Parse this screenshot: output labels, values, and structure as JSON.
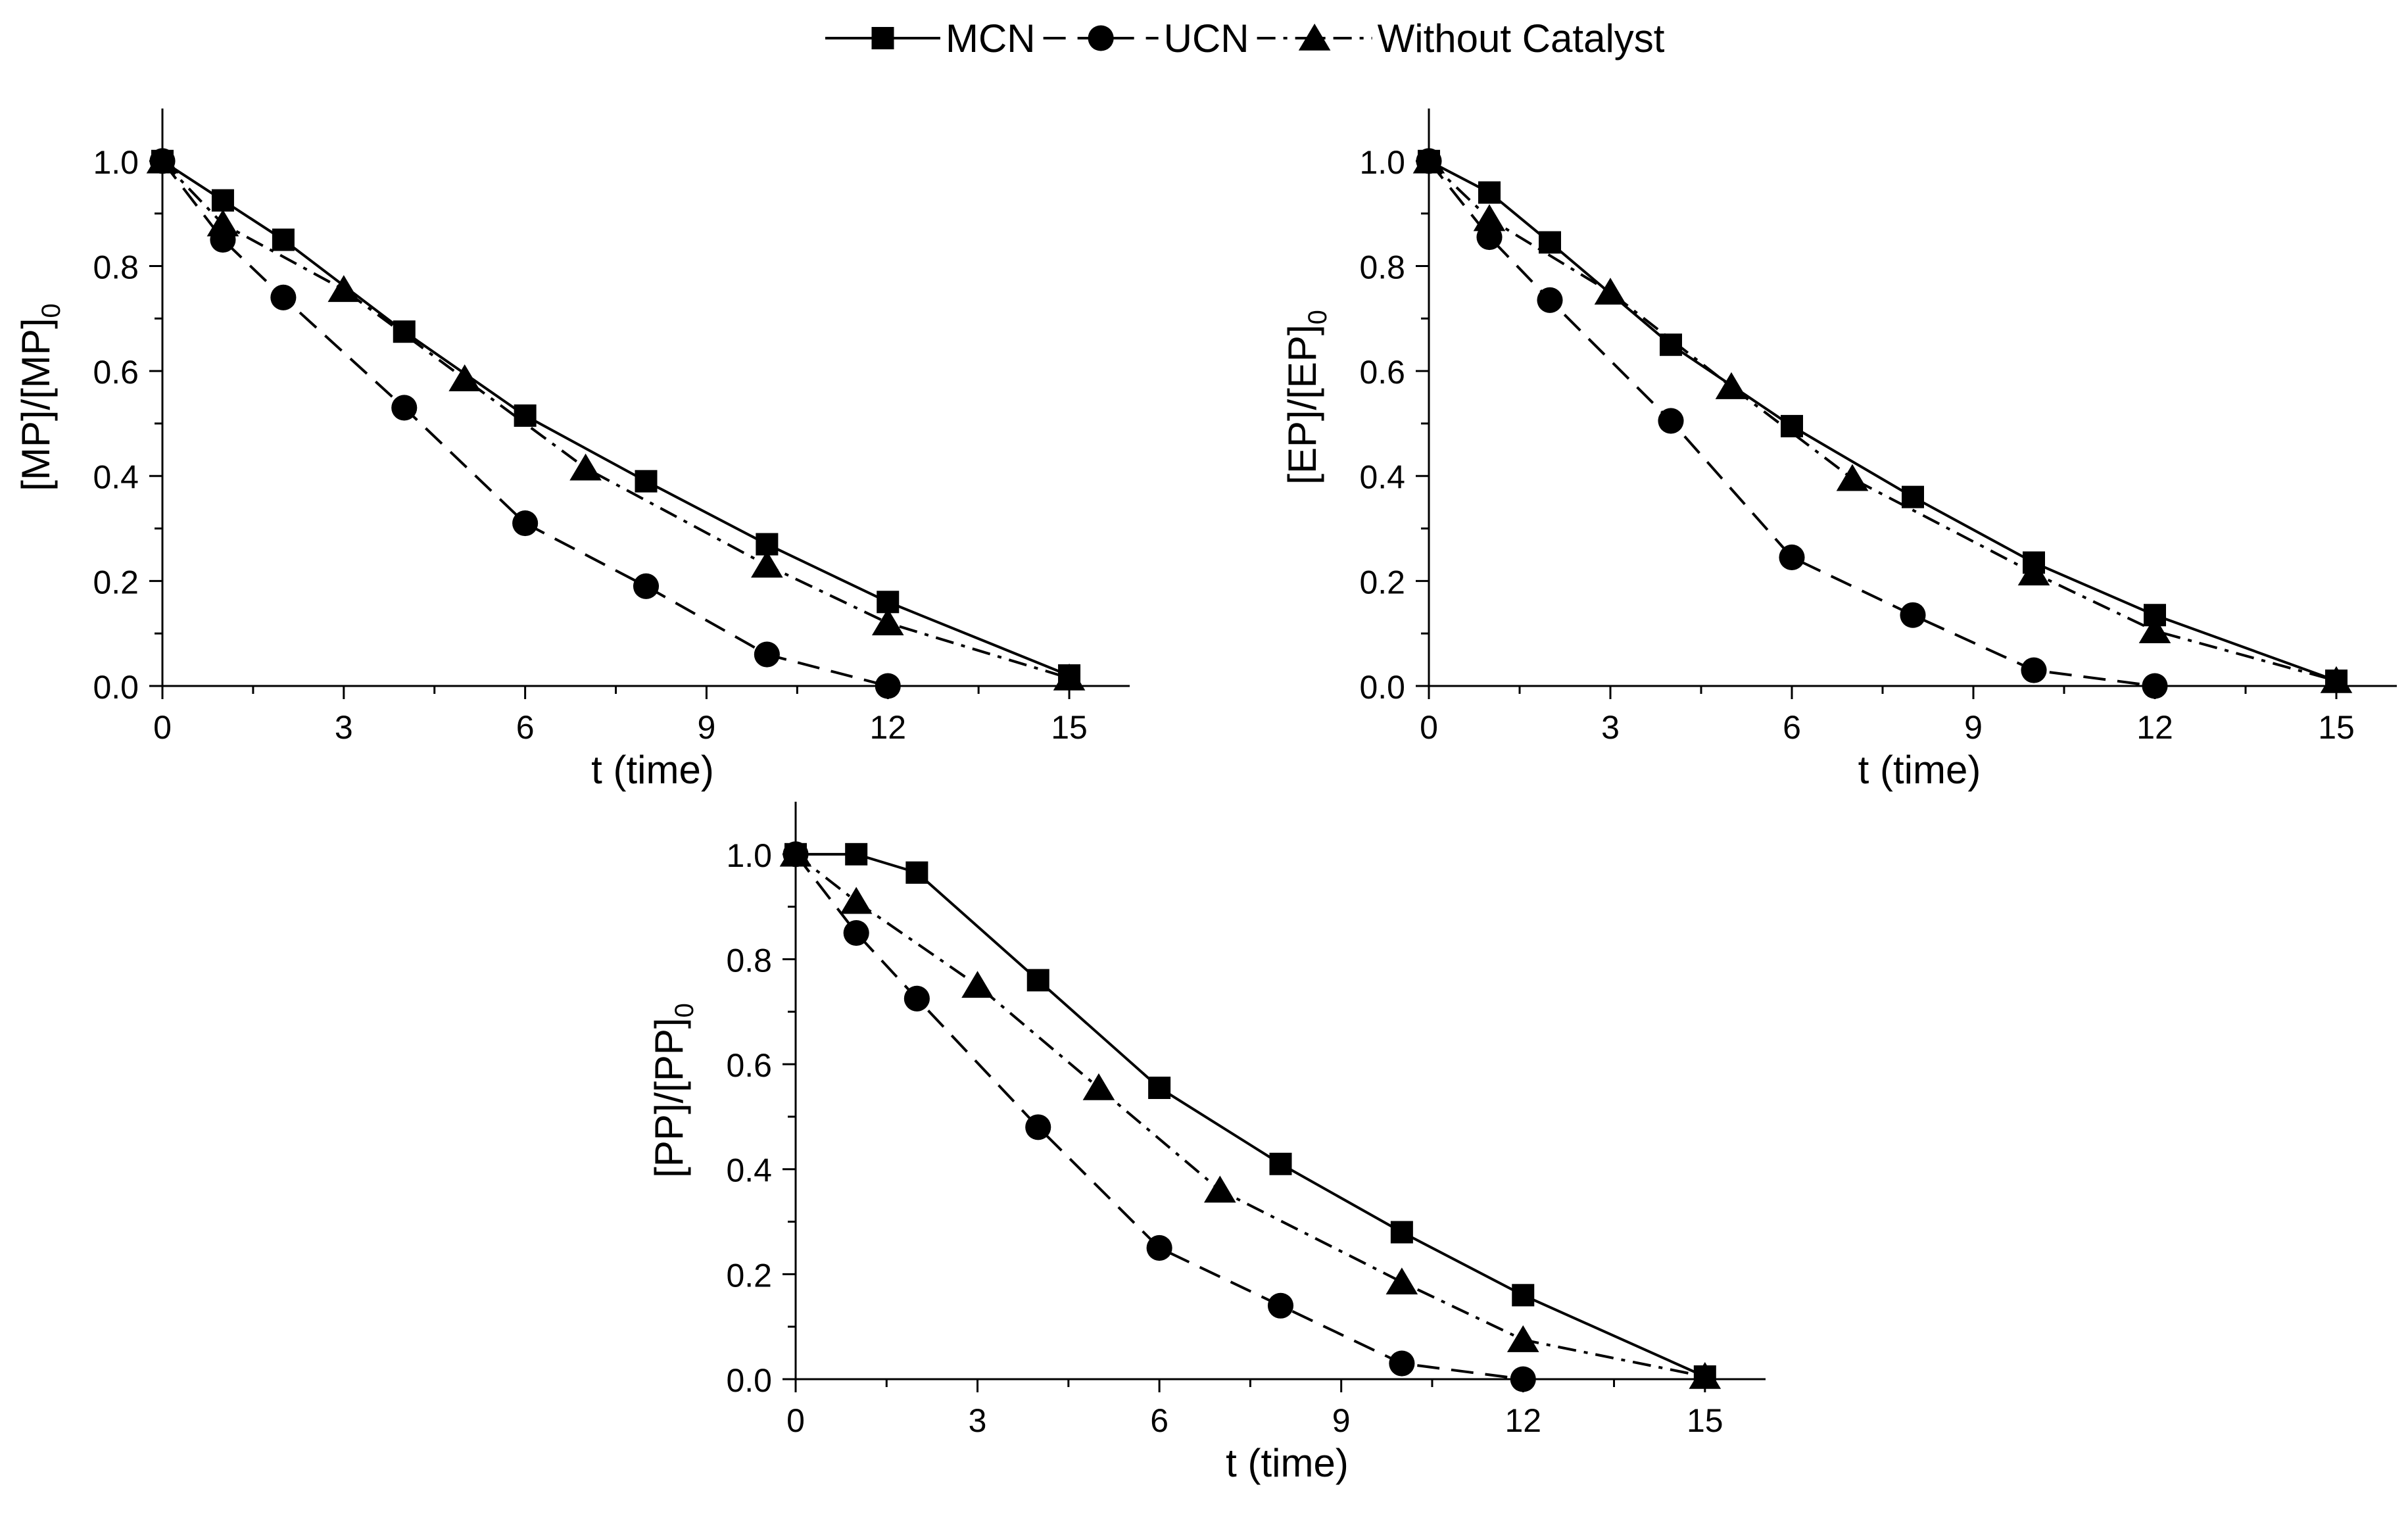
{
  "legend": {
    "position": "top-center",
    "entries": [
      {
        "label": "MCN",
        "marker": "square",
        "line": "solid"
      },
      {
        "label": "UCN",
        "marker": "circle",
        "line": "dashed"
      },
      {
        "label": "Without Catalyst",
        "marker": "triangle",
        "line": "dash-dot"
      }
    ]
  },
  "chart_data": [
    {
      "id": "mp",
      "type": "line",
      "xlabel": "t (time)",
      "ylabel_main": "[MP]/[MP]",
      "ylabel_sub": "0",
      "xlim": [
        0,
        16
      ],
      "ylim": [
        0,
        1.1
      ],
      "xticks": [
        0,
        3,
        6,
        9,
        12,
        15
      ],
      "yticks": [
        0.0,
        0.2,
        0.4,
        0.6,
        0.8,
        1.0
      ],
      "series": [
        {
          "name": "MCN",
          "x": [
            0,
            1,
            2,
            4,
            6,
            8,
            10,
            12,
            15
          ],
          "y": [
            1.0,
            0.925,
            0.85,
            0.675,
            0.515,
            0.39,
            0.27,
            0.16,
            0.02
          ]
        },
        {
          "name": "UCN",
          "x": [
            0,
            1,
            2,
            4,
            6,
            8,
            10,
            12
          ],
          "y": [
            1.0,
            0.85,
            0.74,
            0.53,
            0.31,
            0.19,
            0.06,
            0.0
          ]
        },
        {
          "name": "Without Catalyst",
          "x": [
            0,
            1,
            3,
            5,
            7,
            10,
            12,
            15
          ],
          "y": [
            1.0,
            0.88,
            0.755,
            0.585,
            0.415,
            0.23,
            0.12,
            0.015
          ]
        }
      ]
    },
    {
      "id": "ep",
      "type": "line",
      "xlabel": "t (time)",
      "ylabel_main": "[EP]/[EP]",
      "ylabel_sub": "0",
      "xlim": [
        0,
        16
      ],
      "ylim": [
        0,
        1.1
      ],
      "xticks": [
        0,
        3,
        6,
        9,
        12,
        15
      ],
      "yticks": [
        0.0,
        0.2,
        0.4,
        0.6,
        0.8,
        1.0
      ],
      "series": [
        {
          "name": "MCN",
          "x": [
            0,
            1,
            2,
            4,
            6,
            8,
            10,
            12,
            15
          ],
          "y": [
            1.0,
            0.94,
            0.845,
            0.65,
            0.495,
            0.36,
            0.235,
            0.135,
            0.01
          ]
        },
        {
          "name": "UCN",
          "x": [
            0,
            1,
            2,
            4,
            6,
            8,
            10,
            12
          ],
          "y": [
            1.0,
            0.855,
            0.735,
            0.505,
            0.245,
            0.135,
            0.03,
            0.0
          ]
        },
        {
          "name": "Without Catalyst",
          "x": [
            0,
            1,
            3,
            5,
            7,
            10,
            12,
            15
          ],
          "y": [
            1.0,
            0.89,
            0.75,
            0.57,
            0.395,
            0.215,
            0.105,
            0.01
          ]
        }
      ]
    },
    {
      "id": "pp",
      "type": "line",
      "xlabel": "t (time)",
      "ylabel_main": "[PP]/[PP]",
      "ylabel_sub": "0",
      "xlim": [
        0,
        16
      ],
      "ylim": [
        0,
        1.1
      ],
      "xticks": [
        0,
        3,
        6,
        9,
        12,
        15
      ],
      "yticks": [
        0.0,
        0.2,
        0.4,
        0.6,
        0.8,
        1.0
      ],
      "series": [
        {
          "name": "MCN",
          "x": [
            0,
            1,
            2,
            4,
            6,
            8,
            10,
            12,
            15
          ],
          "y": [
            1.0,
            1.0,
            0.965,
            0.76,
            0.555,
            0.41,
            0.28,
            0.16,
            0.005
          ]
        },
        {
          "name": "UCN",
          "x": [
            0,
            1,
            2,
            4,
            6,
            8,
            10,
            12
          ],
          "y": [
            1.0,
            0.85,
            0.725,
            0.48,
            0.25,
            0.14,
            0.03,
            0.0
          ]
        },
        {
          "name": "Without Catalyst",
          "x": [
            0,
            1,
            3,
            5,
            7,
            10,
            12,
            15
          ],
          "y": [
            1.0,
            0.91,
            0.75,
            0.555,
            0.36,
            0.185,
            0.075,
            0.005
          ]
        }
      ]
    }
  ]
}
